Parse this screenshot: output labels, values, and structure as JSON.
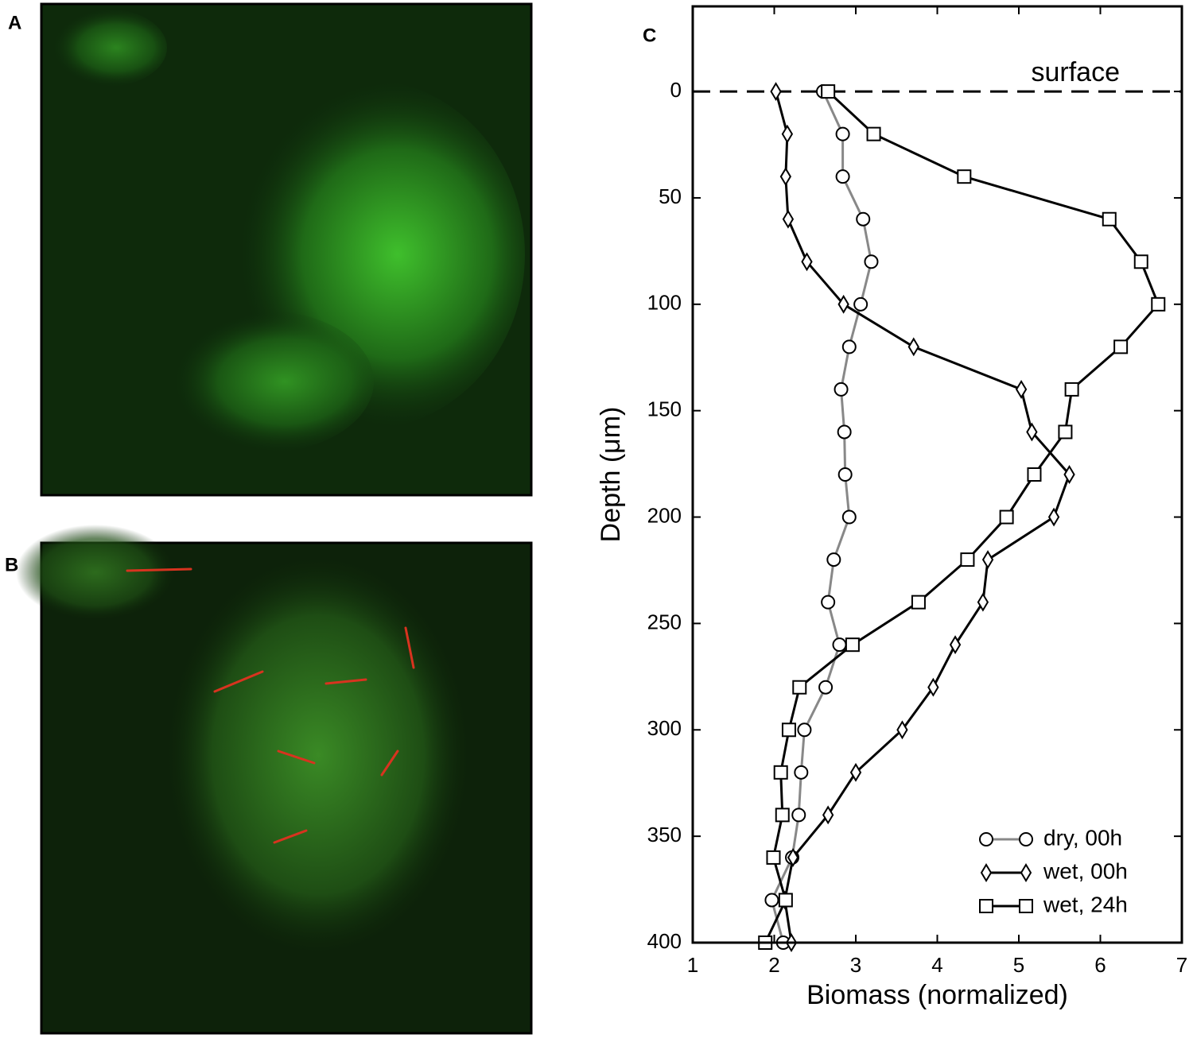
{
  "panel_labels": [
    "A",
    "B"
  ],
  "chart_data": {
    "type": "line",
    "panel_label": "C",
    "xlabel": "Biomass (normalized)",
    "ylabel": "Depth (μm)",
    "annotation": "surface",
    "annotation_depth": 0,
    "y_inverted": true,
    "xlim": [
      1,
      7
    ],
    "xticks": [
      1,
      2,
      3,
      4,
      5,
      6,
      7
    ],
    "ylim": [
      -40,
      400
    ],
    "yticks": [
      0,
      50,
      100,
      150,
      200,
      250,
      300,
      350,
      400
    ],
    "y": [
      0,
      20,
      40,
      60,
      80,
      100,
      120,
      140,
      160,
      180,
      200,
      220,
      240,
      260,
      280,
      300,
      320,
      340,
      360,
      380,
      400
    ],
    "legend": "lower right",
    "series": [
      {
        "name": "dry, 00h",
        "color": "#888888",
        "marker": "circle",
        "values": [
          2.6,
          2.84,
          2.84,
          3.09,
          3.19,
          3.06,
          2.92,
          2.82,
          2.86,
          2.87,
          2.92,
          2.73,
          2.66,
          2.8,
          2.63,
          2.37,
          2.33,
          2.3,
          2.22,
          1.97,
          2.11
        ]
      },
      {
        "name": "wet, 00h",
        "color": "#000000",
        "marker": "diamond",
        "values": [
          2.02,
          2.16,
          2.14,
          2.17,
          2.4,
          2.85,
          3.71,
          5.03,
          5.16,
          5.62,
          5.43,
          4.62,
          4.56,
          4.22,
          3.95,
          3.57,
          3.0,
          2.66,
          2.23,
          2.13,
          2.21
        ]
      },
      {
        "name": "wet, 24h",
        "color": "#000000",
        "marker": "square",
        "values": [
          2.66,
          3.22,
          4.33,
          6.11,
          6.5,
          6.71,
          6.25,
          5.65,
          5.57,
          5.19,
          4.85,
          4.37,
          3.77,
          2.96,
          2.31,
          2.18,
          2.08,
          2.1,
          1.99,
          2.14,
          1.89
        ]
      }
    ]
  }
}
